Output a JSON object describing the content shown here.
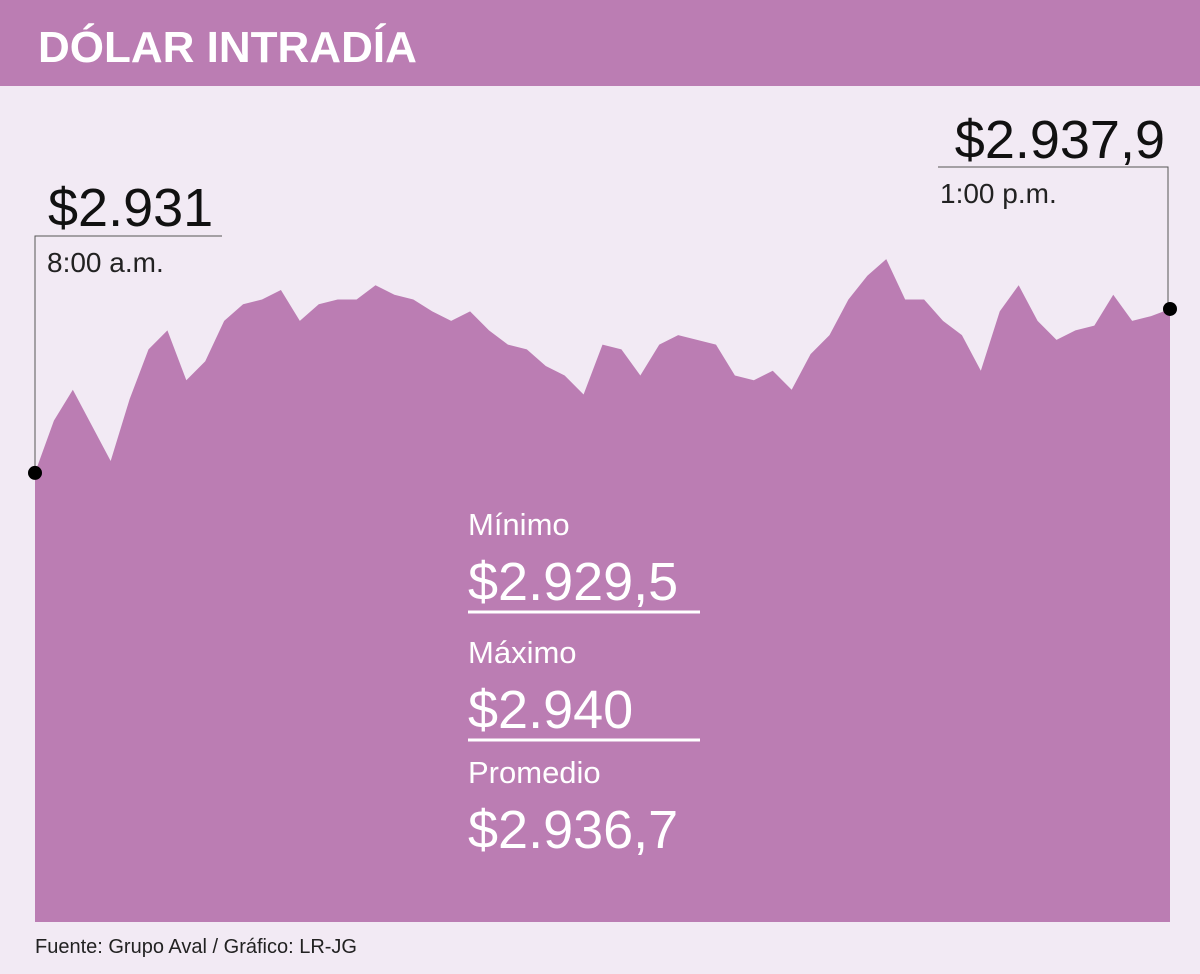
{
  "chart_data": {
    "type": "area",
    "title": "DÓLAR INTRADÍA",
    "categories": [
      "8:00 a.m.",
      null,
      null,
      null,
      null,
      null,
      null,
      null,
      null,
      null,
      null,
      null,
      null,
      null,
      null,
      null,
      null,
      null,
      null,
      null,
      null,
      null,
      null,
      null,
      null,
      null,
      null,
      null,
      null,
      null,
      null,
      null,
      null,
      null,
      null,
      null,
      null,
      null,
      null,
      null,
      null,
      null,
      null,
      null,
      null,
      null,
      null,
      null,
      null,
      null,
      null,
      null,
      null,
      null,
      null,
      null,
      null,
      null,
      null,
      null,
      "1:00 p.m."
    ],
    "values": [
      2931,
      2933.2,
      2934.5,
      2933.0,
      2931.5,
      2934.1,
      2936.2,
      2937.0,
      2934.9,
      2935.7,
      2937.4,
      2938.1,
      2938.3,
      2938.7,
      2937.4,
      2938.1,
      2938.3,
      2938.3,
      2938.9,
      2938.5,
      2938.3,
      2937.8,
      2937.4,
      2937.8,
      2937.0,
      2936.4,
      2936.2,
      2935.5,
      2935.1,
      2934.3,
      2936.4,
      2936.2,
      2935.1,
      2936.4,
      2936.8,
      2936.6,
      2936.4,
      2935.1,
      2934.9,
      2935.3,
      2934.5,
      2936.0,
      2936.8,
      2938.3,
      2939.3,
      2940.0,
      2938.3,
      2938.3,
      2937.4,
      2936.8,
      2935.3,
      2937.8,
      2938.9,
      2937.4,
      2936.6,
      2937.0,
      2937.2,
      2938.5,
      2937.4,
      2937.6,
      2937.9
    ],
    "value_labels": [
      "$2.931",
      null,
      null,
      null,
      null,
      null,
      null,
      null,
      null,
      null,
      null,
      null,
      null,
      null,
      null,
      null,
      null,
      null,
      null,
      null,
      null,
      null,
      null,
      null,
      null,
      null,
      null,
      null,
      null,
      null,
      null,
      null,
      null,
      null,
      null,
      null,
      null,
      null,
      null,
      null,
      null,
      null,
      null,
      null,
      null,
      null,
      null,
      null,
      null,
      null,
      null,
      null,
      null,
      null,
      null,
      null,
      null,
      null,
      null,
      null,
      "$2.937,9"
    ],
    "color": "#bb7db3",
    "ylim": [
      2912.1,
      2947.2
    ],
    "stats": [
      {
        "label": "Mínimo",
        "value": "$2.929,5"
      },
      {
        "label": "Máximo",
        "value": "$2.940"
      },
      {
        "label": "Promedio",
        "value": "$2.936,7"
      }
    ],
    "source": "Fuente: Grupo Aval / Gráfico: LR-JG"
  }
}
